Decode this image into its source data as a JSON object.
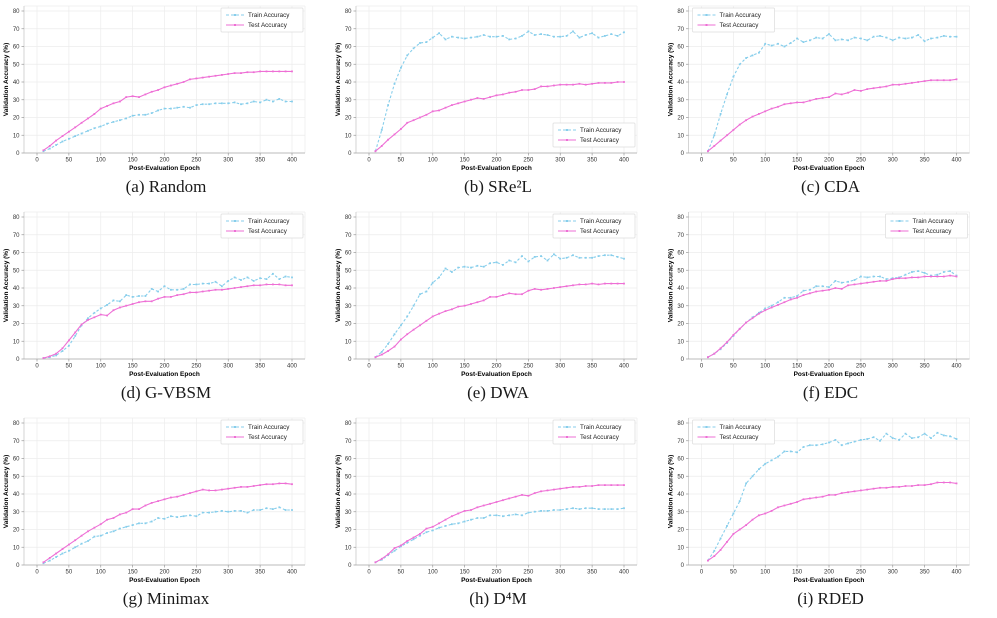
{
  "page": {
    "background": "#ffffff"
  },
  "chart_data": {
    "type": "line",
    "grid_layout": "3x3",
    "xlabel": "Post-Evaluation Epoch",
    "ylabel": "Validation Accuracy (%)",
    "xlim": [
      -20,
      420
    ],
    "ylim": [
      0,
      84
    ],
    "grid": true,
    "xticks": [
      0,
      50,
      100,
      150,
      200,
      250,
      300,
      350,
      400
    ],
    "yticks": [
      0,
      10,
      20,
      30,
      40,
      50,
      60,
      70,
      80
    ],
    "x": [
      10,
      20,
      30,
      40,
      50,
      60,
      70,
      80,
      90,
      100,
      110,
      120,
      130,
      140,
      150,
      160,
      170,
      180,
      190,
      200,
      210,
      220,
      230,
      240,
      250,
      260,
      270,
      280,
      290,
      300,
      310,
      320,
      330,
      340,
      350,
      360,
      370,
      380,
      390,
      400
    ],
    "colors": {
      "train": "#87CEEB",
      "test": "#EE6FD5",
      "gridline": "#ececec",
      "spine": "#c9c9c9",
      "bottom_spine": "#a8a8a8",
      "tick": "#999999",
      "tick_label": "#333333",
      "axis_label": "#000000",
      "legend_border": "#dcdcdc",
      "legend_text": "#222222"
    },
    "legend_labels": [
      "Train Accuracy",
      "Test Accuracy"
    ],
    "panels": [
      {
        "id": "a",
        "caption": "(a) Random",
        "legend_position": "top-right",
        "series": [
          {
            "name": "Train Accuracy",
            "color": "#87CEEB",
            "dashed": true,
            "values": [
              1,
              2.5,
              4.5,
              6.5,
              8,
              9.5,
              11,
              12.5,
              14,
              15,
              16.5,
              17.5,
              18.5,
              19.5,
              21,
              21.5,
              21.5,
              22.5,
              24,
              25,
              25,
              25.5,
              26,
              25.5,
              27,
              27.5,
              27.5,
              28,
              28,
              28,
              28.5,
              27.5,
              28,
              29,
              28.5,
              30,
              29,
              30.5,
              29,
              29
            ]
          },
          {
            "name": "Test Accuracy",
            "color": "#EE6FD5",
            "dashed": false,
            "values": [
              1.5,
              4,
              7,
              9.5,
              12,
              14.5,
              17,
              19.5,
              22,
              25,
              26.5,
              28,
              29,
              31.5,
              32,
              31.5,
              33,
              34.5,
              35.5,
              37,
              38,
              39,
              40,
              41.5,
              42,
              42.5,
              43,
              43.5,
              44,
              44.5,
              45,
              45,
              45.5,
              45.5,
              46,
              46,
              46,
              46,
              46,
              46
            ]
          }
        ]
      },
      {
        "id": "b",
        "caption": "(b) SRe²L",
        "legend_position": "bottom-right",
        "series": [
          {
            "name": "Train Accuracy",
            "color": "#87CEEB",
            "dashed": true,
            "values": [
              1,
              13,
              27,
              39,
              48,
              55,
              59,
              62,
              62.5,
              65,
              67.5,
              64,
              65.5,
              65,
              64.5,
              65,
              65.5,
              66.5,
              65.5,
              65.5,
              66,
              64,
              64.5,
              66,
              68.5,
              66.5,
              67,
              66.5,
              65.5,
              65.5,
              66,
              68.5,
              65,
              66.5,
              67.5,
              65,
              66,
              67,
              66,
              68
            ]
          },
          {
            "name": "Test Accuracy",
            "color": "#EE6FD5",
            "dashed": false,
            "values": [
              1,
              4,
              7.5,
              10.5,
              13.5,
              17,
              18.5,
              20,
              21.5,
              23.5,
              24,
              25.5,
              27,
              28,
              29,
              30,
              31,
              30.5,
              31.5,
              32.5,
              33,
              34,
              34.5,
              35.5,
              35.5,
              36,
              37.5,
              37.5,
              38,
              38.5,
              38.5,
              38.5,
              39,
              38.5,
              39,
              39.5,
              39.5,
              39.5,
              40,
              40
            ]
          }
        ]
      },
      {
        "id": "c",
        "caption": "(c) CDA",
        "legend_position": "top-left",
        "series": [
          {
            "name": "Train Accuracy",
            "color": "#87CEEB",
            "dashed": true,
            "values": [
              1,
              10,
              22,
              33,
              43,
              50,
              53.5,
              55,
              56.5,
              61.5,
              60.5,
              61.5,
              60,
              62,
              64.5,
              62.5,
              63.5,
              65,
              64.5,
              67,
              63.5,
              64,
              63.5,
              65,
              64.5,
              63.5,
              65.5,
              66,
              65,
              63.5,
              65,
              64.5,
              65,
              66.5,
              63,
              64.5,
              65,
              66,
              65.5,
              65.5
            ]
          },
          {
            "name": "Test Accuracy",
            "color": "#EE6FD5",
            "dashed": false,
            "values": [
              1,
              4,
              7,
              10,
              13,
              16,
              18.5,
              20.5,
              22,
              23.5,
              25,
              26,
              27.5,
              28,
              28.5,
              28.5,
              29.5,
              30.5,
              31,
              31.5,
              33.5,
              33,
              34,
              35.5,
              35,
              36,
              36.5,
              37,
              37.5,
              38.5,
              38.5,
              39,
              39.5,
              40,
              40.5,
              41,
              41,
              41,
              41,
              41.5
            ]
          }
        ]
      },
      {
        "id": "d",
        "caption": "(d) G-VBSM",
        "legend_position": "top-right",
        "series": [
          {
            "name": "Train Accuracy",
            "color": "#87CEEB",
            "dashed": true,
            "values": [
              0.5,
              1,
              2,
              4.5,
              7.5,
              13,
              19,
              23,
              26,
              28.5,
              30.5,
              33,
              32.5,
              36,
              35,
              35.5,
              35.5,
              39.5,
              38,
              41,
              39,
              39,
              39.5,
              42,
              42,
              42.5,
              42.5,
              43.5,
              41,
              44,
              46,
              44.5,
              46,
              44,
              45.5,
              45,
              48,
              45,
              46.5,
              46
            ]
          },
          {
            "name": "Test Accuracy",
            "color": "#EE6FD5",
            "dashed": false,
            "values": [
              0.5,
              1.5,
              3,
              6,
              10.5,
              15,
              19.5,
              22,
              23.5,
              25,
              24.5,
              27.5,
              29,
              30,
              31,
              32,
              32.5,
              32.5,
              34,
              35,
              35,
              36,
              36.5,
              37.5,
              37.5,
              38,
              38.5,
              39,
              39,
              39.5,
              40,
              40.5,
              41,
              41.5,
              41.5,
              42,
              42,
              42,
              41.5,
              41.5
            ]
          }
        ]
      },
      {
        "id": "e",
        "caption": "(e) DWA",
        "legend_position": "top-right",
        "series": [
          {
            "name": "Train Accuracy",
            "color": "#87CEEB",
            "dashed": true,
            "values": [
              1,
              4,
              8.5,
              14,
              19,
              24,
              30,
              36.5,
              38,
              43,
              46,
              51,
              49,
              51.5,
              52,
              51.5,
              52.5,
              52,
              54,
              54.5,
              53,
              55.5,
              54.5,
              58,
              55,
              57.5,
              58,
              55.5,
              59,
              56.5,
              57,
              58.5,
              57,
              57,
              57,
              58,
              58.5,
              58.5,
              57.5,
              56.5
            ]
          },
          {
            "name": "Test Accuracy",
            "color": "#EE6FD5",
            "dashed": false,
            "values": [
              1,
              2.5,
              4.5,
              7,
              11,
              14,
              16.5,
              19,
              21.5,
              24,
              25.5,
              27,
              28,
              29.5,
              30,
              31,
              32,
              33,
              35,
              35,
              36,
              37,
              36.5,
              36.5,
              38.5,
              39.5,
              39,
              39.5,
              40,
              40.5,
              41,
              41.5,
              42,
              42,
              42.5,
              42,
              42.5,
              42.5,
              42.5,
              42.5
            ]
          }
        ]
      },
      {
        "id": "f",
        "caption": "(f) EDC",
        "legend_position": "top-right",
        "series": [
          {
            "name": "Train Accuracy",
            "color": "#87CEEB",
            "dashed": true,
            "values": [
              1,
              3,
              5.5,
              9,
              13,
              17,
              20.5,
              23.5,
              26,
              28.5,
              30,
              32,
              34.5,
              34.5,
              35.5,
              38.5,
              39,
              41,
              41,
              40.5,
              44,
              43,
              43.5,
              44.5,
              46.5,
              46,
              46.5,
              46.5,
              45,
              45.5,
              46,
              47.5,
              49,
              49.5,
              48.5,
              47,
              47.5,
              49,
              49.5,
              47
            ]
          },
          {
            "name": "Test Accuracy",
            "color": "#EE6FD5",
            "dashed": false,
            "values": [
              1,
              3,
              6,
              9.5,
              13.5,
              17,
              20.5,
              23,
              25.5,
              27.5,
              29,
              30.5,
              32,
              33.5,
              34.5,
              36,
              37,
              38,
              38.5,
              39,
              40,
              39.5,
              41.5,
              42,
              42.5,
              43,
              43.5,
              44,
              44,
              45,
              45.5,
              45.5,
              46,
              46,
              46.5,
              46.5,
              46.5,
              46.5,
              47,
              46.5
            ]
          }
        ]
      },
      {
        "id": "g",
        "caption": "(g) Minimax",
        "legend_position": "top-right",
        "series": [
          {
            "name": "Train Accuracy",
            "color": "#87CEEB",
            "dashed": true,
            "values": [
              1,
              2.5,
              4.5,
              6.5,
              8,
              10,
              12,
              13.5,
              16,
              16.5,
              18,
              19,
              20.5,
              21.5,
              22.5,
              23.5,
              23.5,
              24.5,
              26.5,
              26,
              27.5,
              27,
              27.5,
              28,
              27.5,
              29.5,
              29.5,
              30,
              30.5,
              30,
              30.5,
              30.5,
              29.5,
              31,
              31,
              32,
              31.5,
              32.5,
              31,
              31
            ]
          },
          {
            "name": "Test Accuracy",
            "color": "#EE6FD5",
            "dashed": false,
            "values": [
              1.5,
              4,
              6.5,
              9,
              11.5,
              14,
              16.5,
              19,
              21,
              23,
              25.5,
              26.5,
              28.5,
              29.5,
              31.5,
              31.5,
              33.5,
              35,
              36,
              37,
              38,
              38.5,
              39.5,
              40.5,
              41.5,
              42.5,
              42,
              42,
              42.5,
              43,
              43.5,
              44,
              44,
              44.5,
              45,
              45.5,
              45.5,
              46,
              46,
              45.5
            ]
          }
        ]
      },
      {
        "id": "h",
        "caption": "(h) D⁴M",
        "legend_position": "top-right",
        "series": [
          {
            "name": "Train Accuracy",
            "color": "#87CEEB",
            "dashed": true,
            "values": [
              1.5,
              3,
              5.5,
              8,
              10.5,
              12.5,
              14.5,
              16.5,
              18.5,
              19.5,
              21,
              22,
              23,
              23.5,
              24.5,
              25.5,
              26.5,
              26.5,
              28,
              28,
              27.5,
              28,
              28.5,
              28,
              29.5,
              30,
              30.5,
              30.5,
              31,
              31,
              31.5,
              32,
              31.5,
              32,
              32,
              31.5,
              31.5,
              31.5,
              31.5,
              32
            ]
          },
          {
            "name": "Test Accuracy",
            "color": "#EE6FD5",
            "dashed": false,
            "values": [
              1.5,
              3.5,
              6,
              9.5,
              11,
              13.5,
              15.5,
              17.5,
              20.5,
              21.5,
              23.5,
              25.5,
              27.5,
              29,
              30.5,
              31,
              32.5,
              33.5,
              34.5,
              35.5,
              36.5,
              37.5,
              38.5,
              39.5,
              39,
              40.5,
              41.5,
              42,
              42.5,
              43,
              43.5,
              44,
              44,
              44.5,
              44.5,
              45,
              45,
              45,
              45,
              45
            ]
          }
        ]
      },
      {
        "id": "i",
        "caption": "(i) RDED",
        "legend_position": "top-left",
        "series": [
          {
            "name": "Train Accuracy",
            "color": "#87CEEB",
            "dashed": true,
            "values": [
              2.5,
              8,
              15,
              22,
              29,
              36,
              46,
              50,
              54,
              57,
              59,
              61,
              64,
              64,
              63.5,
              66.5,
              67.5,
              67.5,
              68,
              69,
              70.5,
              67.5,
              68.5,
              69.5,
              70.5,
              71,
              72,
              70,
              74,
              71.5,
              70.5,
              74,
              71.5,
              72,
              74,
              71.5,
              74.5,
              73,
              72.5,
              71
            ]
          },
          {
            "name": "Test Accuracy",
            "color": "#EE6FD5",
            "dashed": false,
            "values": [
              2.5,
              5,
              8.5,
              13,
              17.5,
              20,
              22.5,
              25.5,
              28,
              29,
              30.5,
              32.5,
              33.5,
              34.5,
              35.5,
              37,
              37.5,
              38,
              38.5,
              39.5,
              39.5,
              40.5,
              41,
              41.5,
              42,
              42.5,
              43,
              43.5,
              43.5,
              44,
              44,
              44.5,
              44.5,
              45,
              45,
              45.5,
              46.5,
              46.5,
              46.5,
              46
            ]
          }
        ]
      }
    ]
  }
}
